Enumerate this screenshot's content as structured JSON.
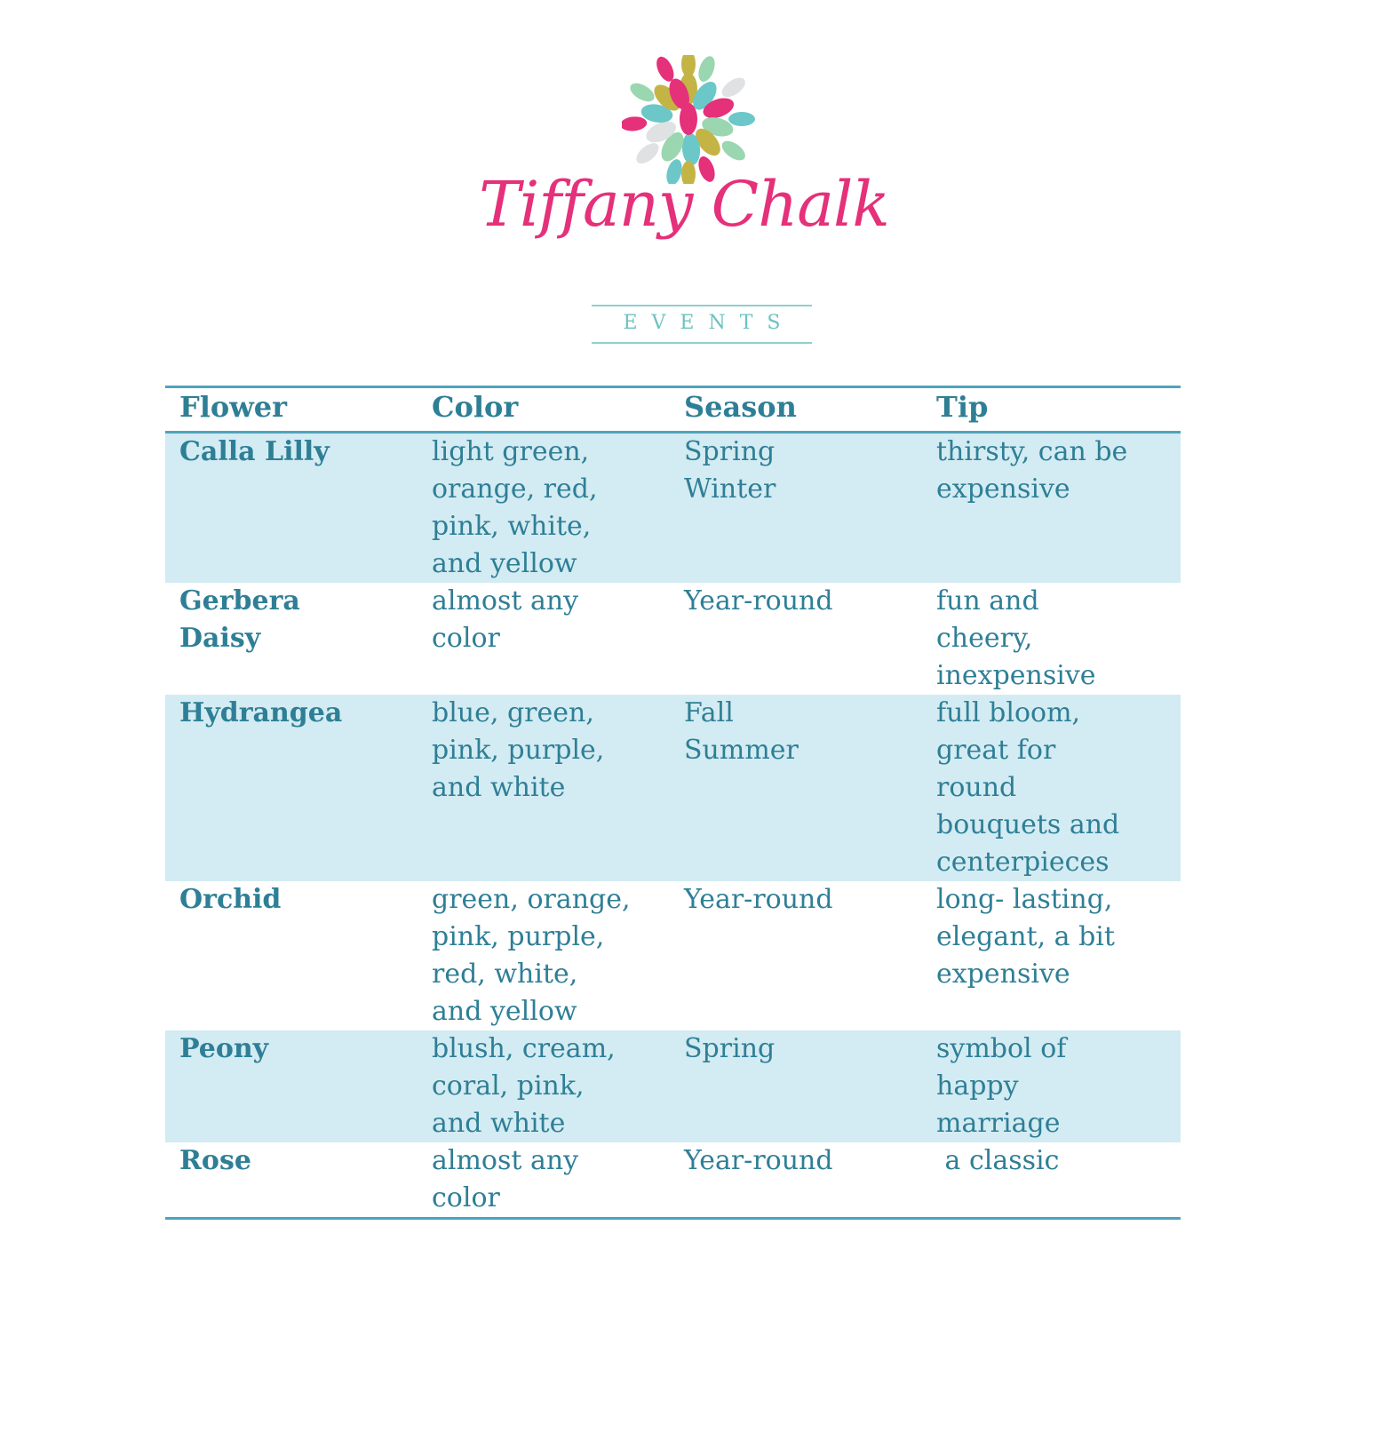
{
  "logo": {
    "brand_name": "Tiffany Chalk",
    "subtitle": "EVENTS",
    "colors": {
      "pink": "#e5307a",
      "teal": "#6cc7c9",
      "gold": "#c4b446",
      "mint": "#9ad6b0",
      "gray": "#dfe1e3"
    }
  },
  "table": {
    "headers": [
      "Flower",
      "Color",
      "Season",
      "Tip"
    ],
    "rows": [
      {
        "flower": "Calla Lilly",
        "color": "light green,\norange, red,\npink, white,\nand yellow",
        "season": "Spring\nWinter",
        "tip": "thirsty, can be\nexpensive"
      },
      {
        "flower": "Gerbera\nDaisy",
        "color": "almost any\ncolor",
        "season": "Year-round",
        "tip": "fun and\ncheery,\ninexpensive"
      },
      {
        "flower": "Hydrangea",
        "color": "blue, green,\npink, purple,\nand white",
        "season": "Fall\nSummer",
        "tip": "full bloom,\ngreat for\nround\nbouquets and\ncenterpieces"
      },
      {
        "flower": "Orchid",
        "color": "green, orange,\npink, purple,\nred, white,\nand yellow",
        "season": "Year-round",
        "tip": "long- lasting,\nelegant, a bit\nexpensive"
      },
      {
        "flower": "Peony",
        "color": "blush, cream,\ncoral, pink,\nand white",
        "season": "Spring",
        "tip": "symbol of\nhappy\nmarriage"
      },
      {
        "flower": "Rose",
        "color": "almost any\ncolor",
        "season": "Year-round",
        "tip": " a classic"
      }
    ],
    "colors": {
      "text": "#2e7f96",
      "rule": "#4ea3bd",
      "shade": "#d3ebf2"
    }
  }
}
